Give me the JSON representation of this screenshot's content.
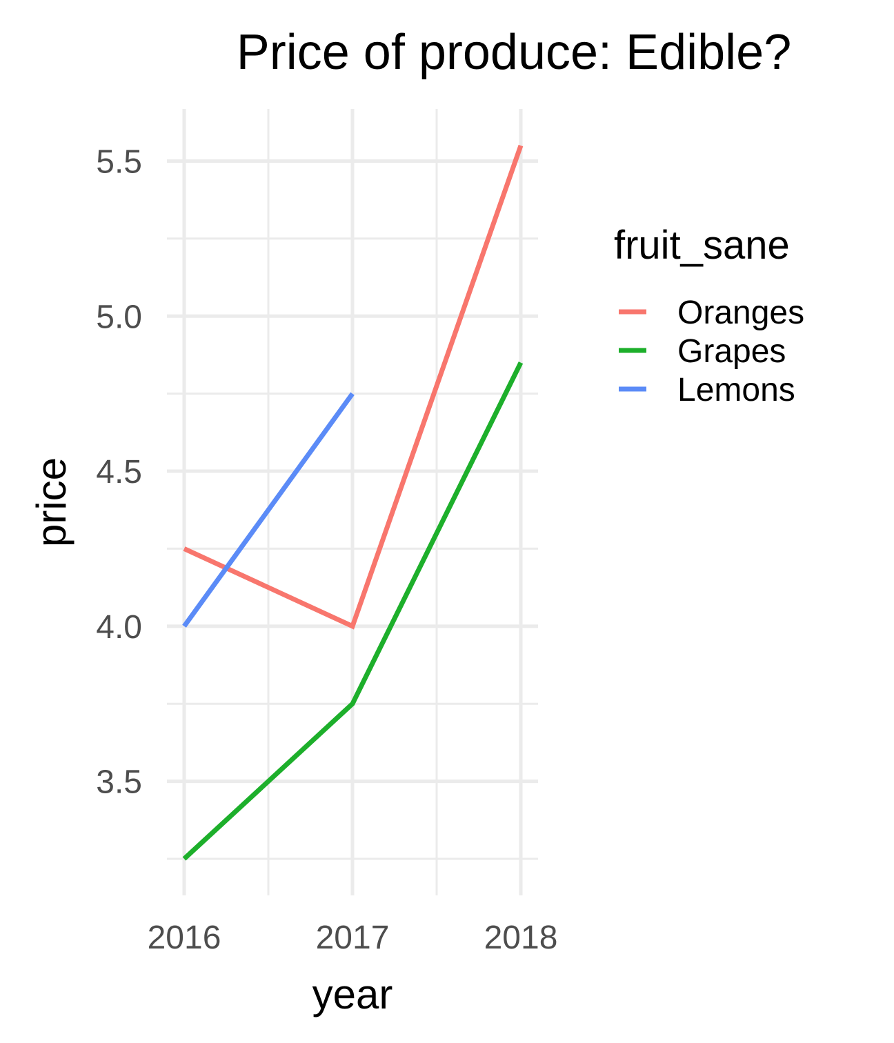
{
  "chart_data": {
    "type": "line",
    "title": "Price of produce: Edible?",
    "xlabel": "year",
    "ylabel": "price",
    "x": [
      2016,
      2017,
      2018
    ],
    "x_ticks": [
      "2016",
      "2017",
      "2018"
    ],
    "xlim": [
      2016,
      2018
    ],
    "y_ticks": [
      "3.5",
      "4.0",
      "4.5",
      "5.0",
      "5.5"
    ],
    "ylim": [
      3.25,
      5.55
    ],
    "grid": true,
    "legend": {
      "title": "fruit_sane",
      "position": "right"
    },
    "series": [
      {
        "name": "Oranges",
        "color": "#F8766D",
        "values": [
          4.25,
          4.0,
          5.55
        ]
      },
      {
        "name": "Grapes",
        "color": "#1DAF2B",
        "values": [
          3.25,
          3.75,
          4.85
        ]
      },
      {
        "name": "Lemons",
        "color": "#5B8BF7",
        "values": [
          4.0,
          4.75,
          null
        ]
      }
    ]
  }
}
